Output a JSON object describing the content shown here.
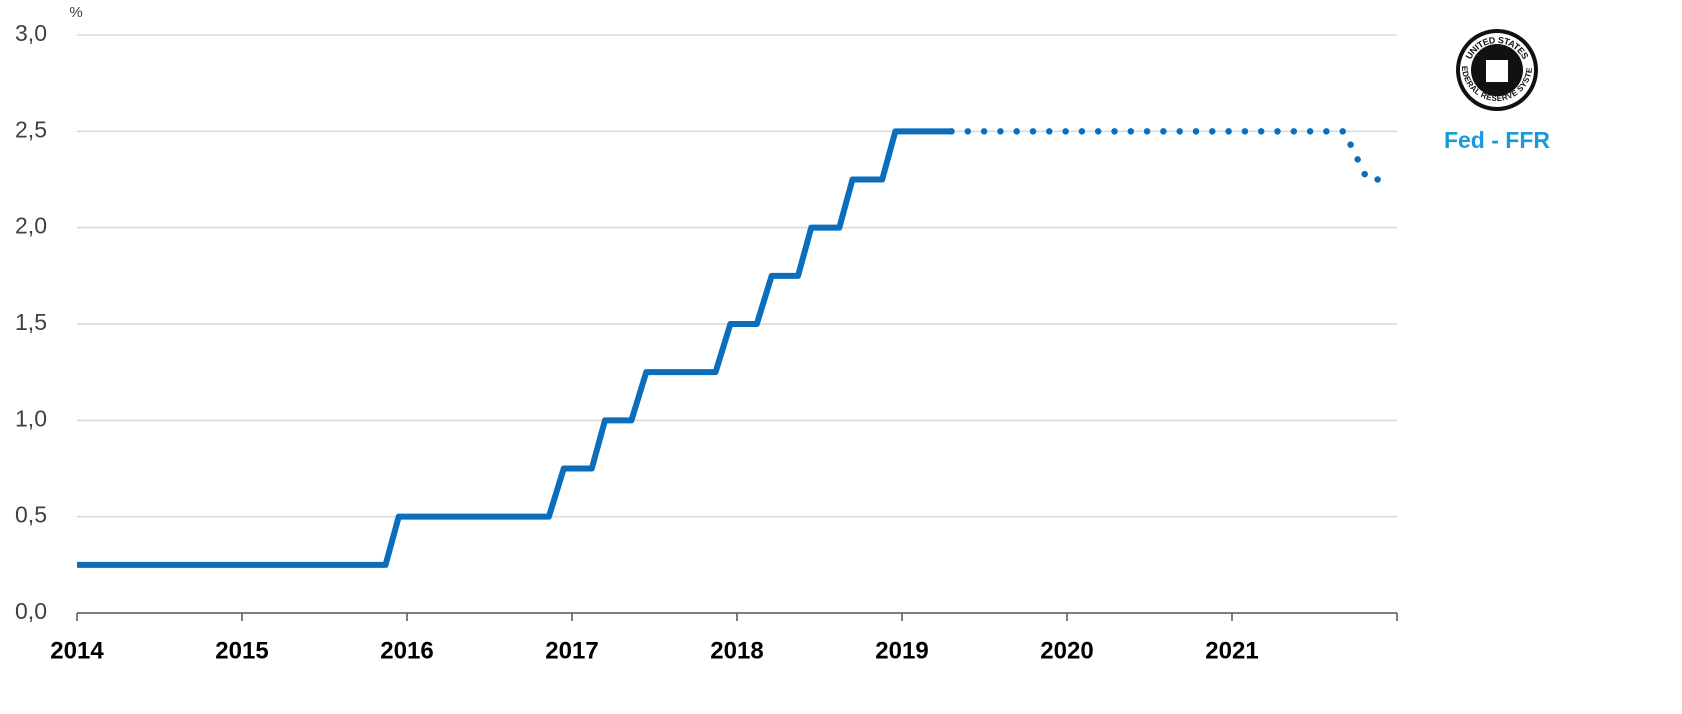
{
  "chart_data": {
    "type": "line",
    "y_label": "%",
    "xlim": [
      2014,
      2022
    ],
    "xticks": [
      2014,
      2015,
      2016,
      2017,
      2018,
      2019,
      2020,
      2021
    ],
    "ylim": [
      0,
      3
    ],
    "yticks": [
      {
        "value": 0,
        "label": "0,0"
      },
      {
        "value": 0.5,
        "label": "0,5"
      },
      {
        "value": 1,
        "label": "1,0"
      },
      {
        "value": 1.5,
        "label": "1,5"
      },
      {
        "value": 2,
        "label": "2,0"
      },
      {
        "value": 2.5,
        "label": "2,5"
      },
      {
        "value": 3,
        "label": "3,0"
      }
    ],
    "grid": true,
    "series": [
      {
        "name": "Fed - FFR",
        "color": "#0a6ebd",
        "style": "solid",
        "x": [
          2014.0,
          2015.87,
          2015.95,
          2016.86,
          2016.95,
          2017.12,
          2017.2,
          2017.36,
          2017.45,
          2017.87,
          2017.96,
          2018.12,
          2018.21,
          2018.37,
          2018.45,
          2018.62,
          2018.7,
          2018.88,
          2018.96,
          2019.3
        ],
        "values": [
          0.25,
          0.25,
          0.5,
          0.5,
          0.75,
          0.75,
          1.0,
          1.0,
          1.25,
          1.25,
          1.5,
          1.5,
          1.75,
          1.75,
          2.0,
          2.0,
          2.25,
          2.25,
          2.5,
          2.5
        ]
      },
      {
        "color": "#0a6ebd",
        "style": "dotted",
        "x": [
          2019.3,
          2021.68,
          2021.82,
          2021.95
        ],
        "values": [
          2.5,
          2.5,
          2.25,
          2.25
        ]
      }
    ],
    "legend_color": "#1a9ad6",
    "logo": {
      "top": "UNITED STATES",
      "bottom": "FEDERAL RESERVE SYSTEM"
    }
  }
}
